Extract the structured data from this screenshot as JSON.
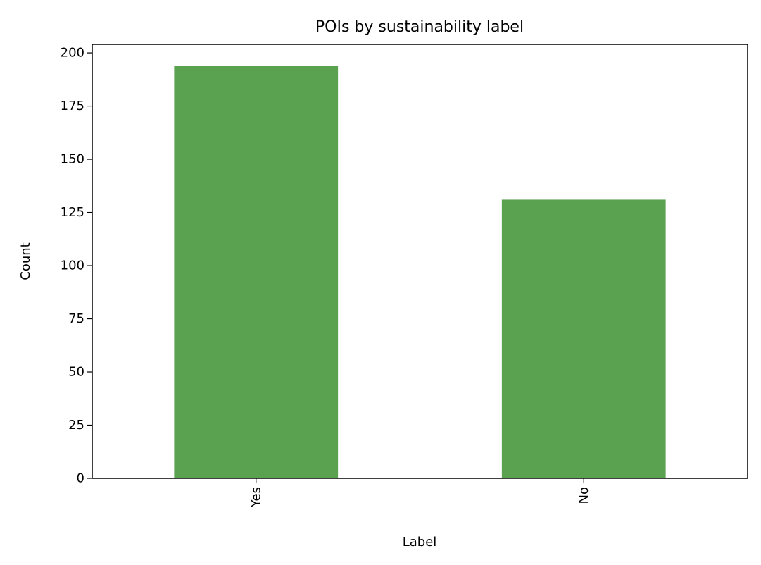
{
  "chart_data": {
    "type": "bar",
    "title": "POIs by sustainability label",
    "xlabel": "Label",
    "ylabel": "Count",
    "categories": [
      "Yes",
      "No"
    ],
    "values": [
      194,
      131
    ],
    "ylim": [
      0,
      204
    ],
    "yticks": [
      0,
      25,
      50,
      75,
      100,
      125,
      150,
      175,
      200
    ],
    "bar_color": "#5aa150",
    "grid": false,
    "legend": "none"
  }
}
